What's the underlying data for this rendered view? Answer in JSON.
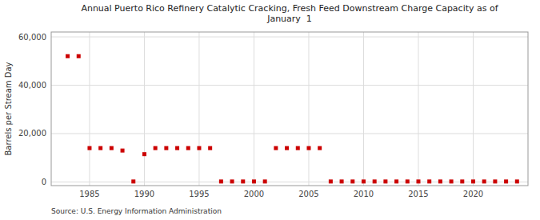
{
  "chart_data": {
    "type": "scatter",
    "title": "Annual Puerto Rico Refinery Catalytic Cracking, Fresh Feed Downstream Charge Capacity as of\nJanuary  1",
    "y_label": "Barrels per Stream Day",
    "annotations": [
      "Source: U.S. Energy Information Administration"
    ],
    "color": "#cc0000",
    "marker": "square",
    "grid": true,
    "xlim": [
      1981.5,
      2025
    ],
    "ylim": [
      -1500,
      62000
    ],
    "xticks": [
      1985,
      1990,
      1995,
      2000,
      2005,
      2010,
      2015,
      2020
    ],
    "yticks": [
      0,
      {
        "value": 20000,
        "label": "20,000"
      },
      {
        "value": 40000,
        "label": "40,000"
      },
      {
        "value": 60000,
        "label": "60,000"
      }
    ],
    "x": [
      1983,
      1984,
      1985,
      1986,
      1987,
      1988,
      1989,
      1990,
      1991,
      1992,
      1993,
      1994,
      1995,
      1996,
      1997,
      1998,
      1999,
      2000,
      2001,
      2002,
      2003,
      2004,
      2005,
      2006,
      2007,
      2008,
      2009,
      2010,
      2011,
      2012,
      2013,
      2014,
      2015,
      2016,
      2017,
      2018,
      2019,
      2020,
      2021,
      2022,
      2023,
      2024
    ],
    "values": [
      52000,
      52000,
      14000,
      14000,
      14000,
      13000,
      200,
      11500,
      14000,
      14000,
      14000,
      14000,
      14000,
      14000,
      200,
      200,
      200,
      200,
      200,
      14000,
      14000,
      14000,
      14000,
      14000,
      200,
      200,
      200,
      200,
      200,
      200,
      200,
      200,
      200,
      200,
      200,
      200,
      200,
      200,
      200,
      200,
      200,
      200
    ]
  }
}
